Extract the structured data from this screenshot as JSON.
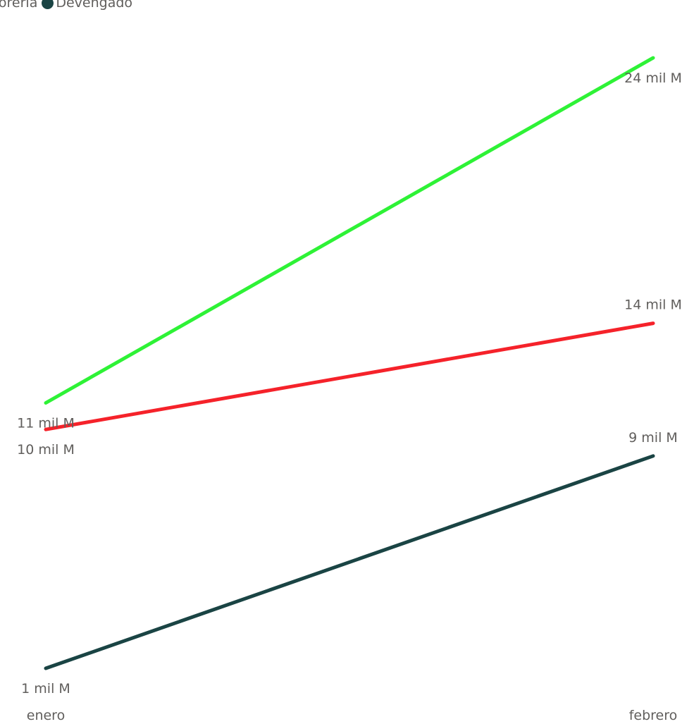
{
  "chart_data": {
    "type": "line",
    "categories": [
      "enero",
      "febrero"
    ],
    "series": [
      {
        "name": "Tesorería",
        "color": "#2EF236",
        "values": [
          11,
          24
        ],
        "labels": [
          "11 mil M",
          "24 mil M"
        ]
      },
      {
        "name": "",
        "color": "#F5222A",
        "values": [
          10,
          14
        ],
        "labels": [
          "10 mil M",
          "14 mil M"
        ]
      },
      {
        "name": "Devengado",
        "color": "#1A4444",
        "values": [
          1,
          9
        ],
        "labels": [
          "1 mil M",
          "9 mil M"
        ]
      }
    ],
    "legend": {
      "position": "top-left",
      "visible_text": [
        "soreria",
        "Devengado"
      ]
    },
    "grid": false,
    "y_axis_visible": false
  }
}
